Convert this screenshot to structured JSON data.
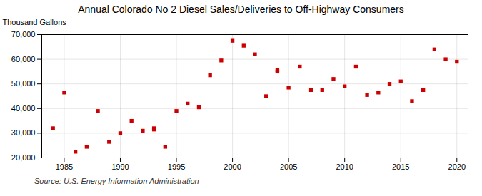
{
  "chart_data": {
    "type": "scatter",
    "title": "Annual Colorado No 2 Diesel Sales/Deliveries to Off-Highway Consumers",
    "ylabel": "Thousand Gallons",
    "caption": "Source: U.S. Energy Information Administration",
    "color": "#cc0000",
    "marker": "square",
    "x": [
      1984,
      1985,
      1986,
      1987,
      1988,
      1989,
      1990,
      1991,
      1992,
      1993,
      1993,
      1994,
      1995,
      1996,
      1997,
      1998,
      1999,
      2000,
      2001,
      2002,
      2003,
      2004,
      2004,
      2005,
      2006,
      2007,
      2008,
      2009,
      2010,
      2011,
      2012,
      2013,
      2014,
      2015,
      2016,
      2017,
      2018,
      2019,
      2020
    ],
    "values": [
      32000,
      46500,
      22500,
      24500,
      39000,
      26500,
      30000,
      35000,
      31000,
      31500,
      32000,
      24500,
      39000,
      42000,
      40500,
      53500,
      59500,
      67500,
      65500,
      62000,
      45000,
      55500,
      55000,
      48500,
      57000,
      47500,
      47500,
      52000,
      49000,
      57000,
      45500,
      46500,
      50000,
      51000,
      43000,
      47500,
      64000,
      60000,
      59000
    ],
    "xlim": [
      1983,
      2021
    ],
    "ylim": [
      20000,
      70000
    ],
    "xticks": [
      1985,
      1990,
      1995,
      2000,
      2005,
      2010,
      2015,
      2020
    ],
    "yticks": [
      {
        "value": 20000,
        "label": "20,000"
      },
      {
        "value": 30000,
        "label": "30,000"
      },
      {
        "value": 40000,
        "label": "40,000"
      },
      {
        "value": 50000,
        "label": "50,000"
      },
      {
        "value": 60000,
        "label": "60,000"
      },
      {
        "value": 70000,
        "label": "70,000"
      }
    ],
    "grid": true
  }
}
